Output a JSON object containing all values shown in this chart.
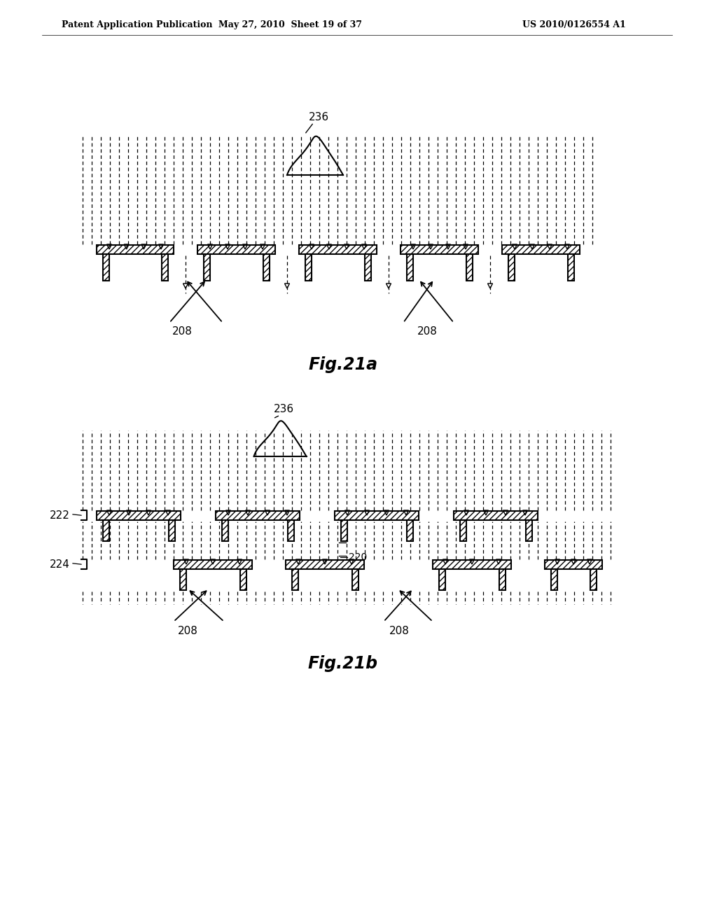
{
  "header_left": "Patent Application Publication",
  "header_mid": "May 27, 2010  Sheet 19 of 37",
  "header_right": "US 2010/0126554 A1",
  "fig_a_label": "Fig.21a",
  "fig_b_label": "Fig.21b",
  "label_236": "236",
  "label_208": "208",
  "label_222": "222",
  "label_224": "224",
  "label_220": "220",
  "bg_color": "#ffffff",
  "line_color": "#000000"
}
